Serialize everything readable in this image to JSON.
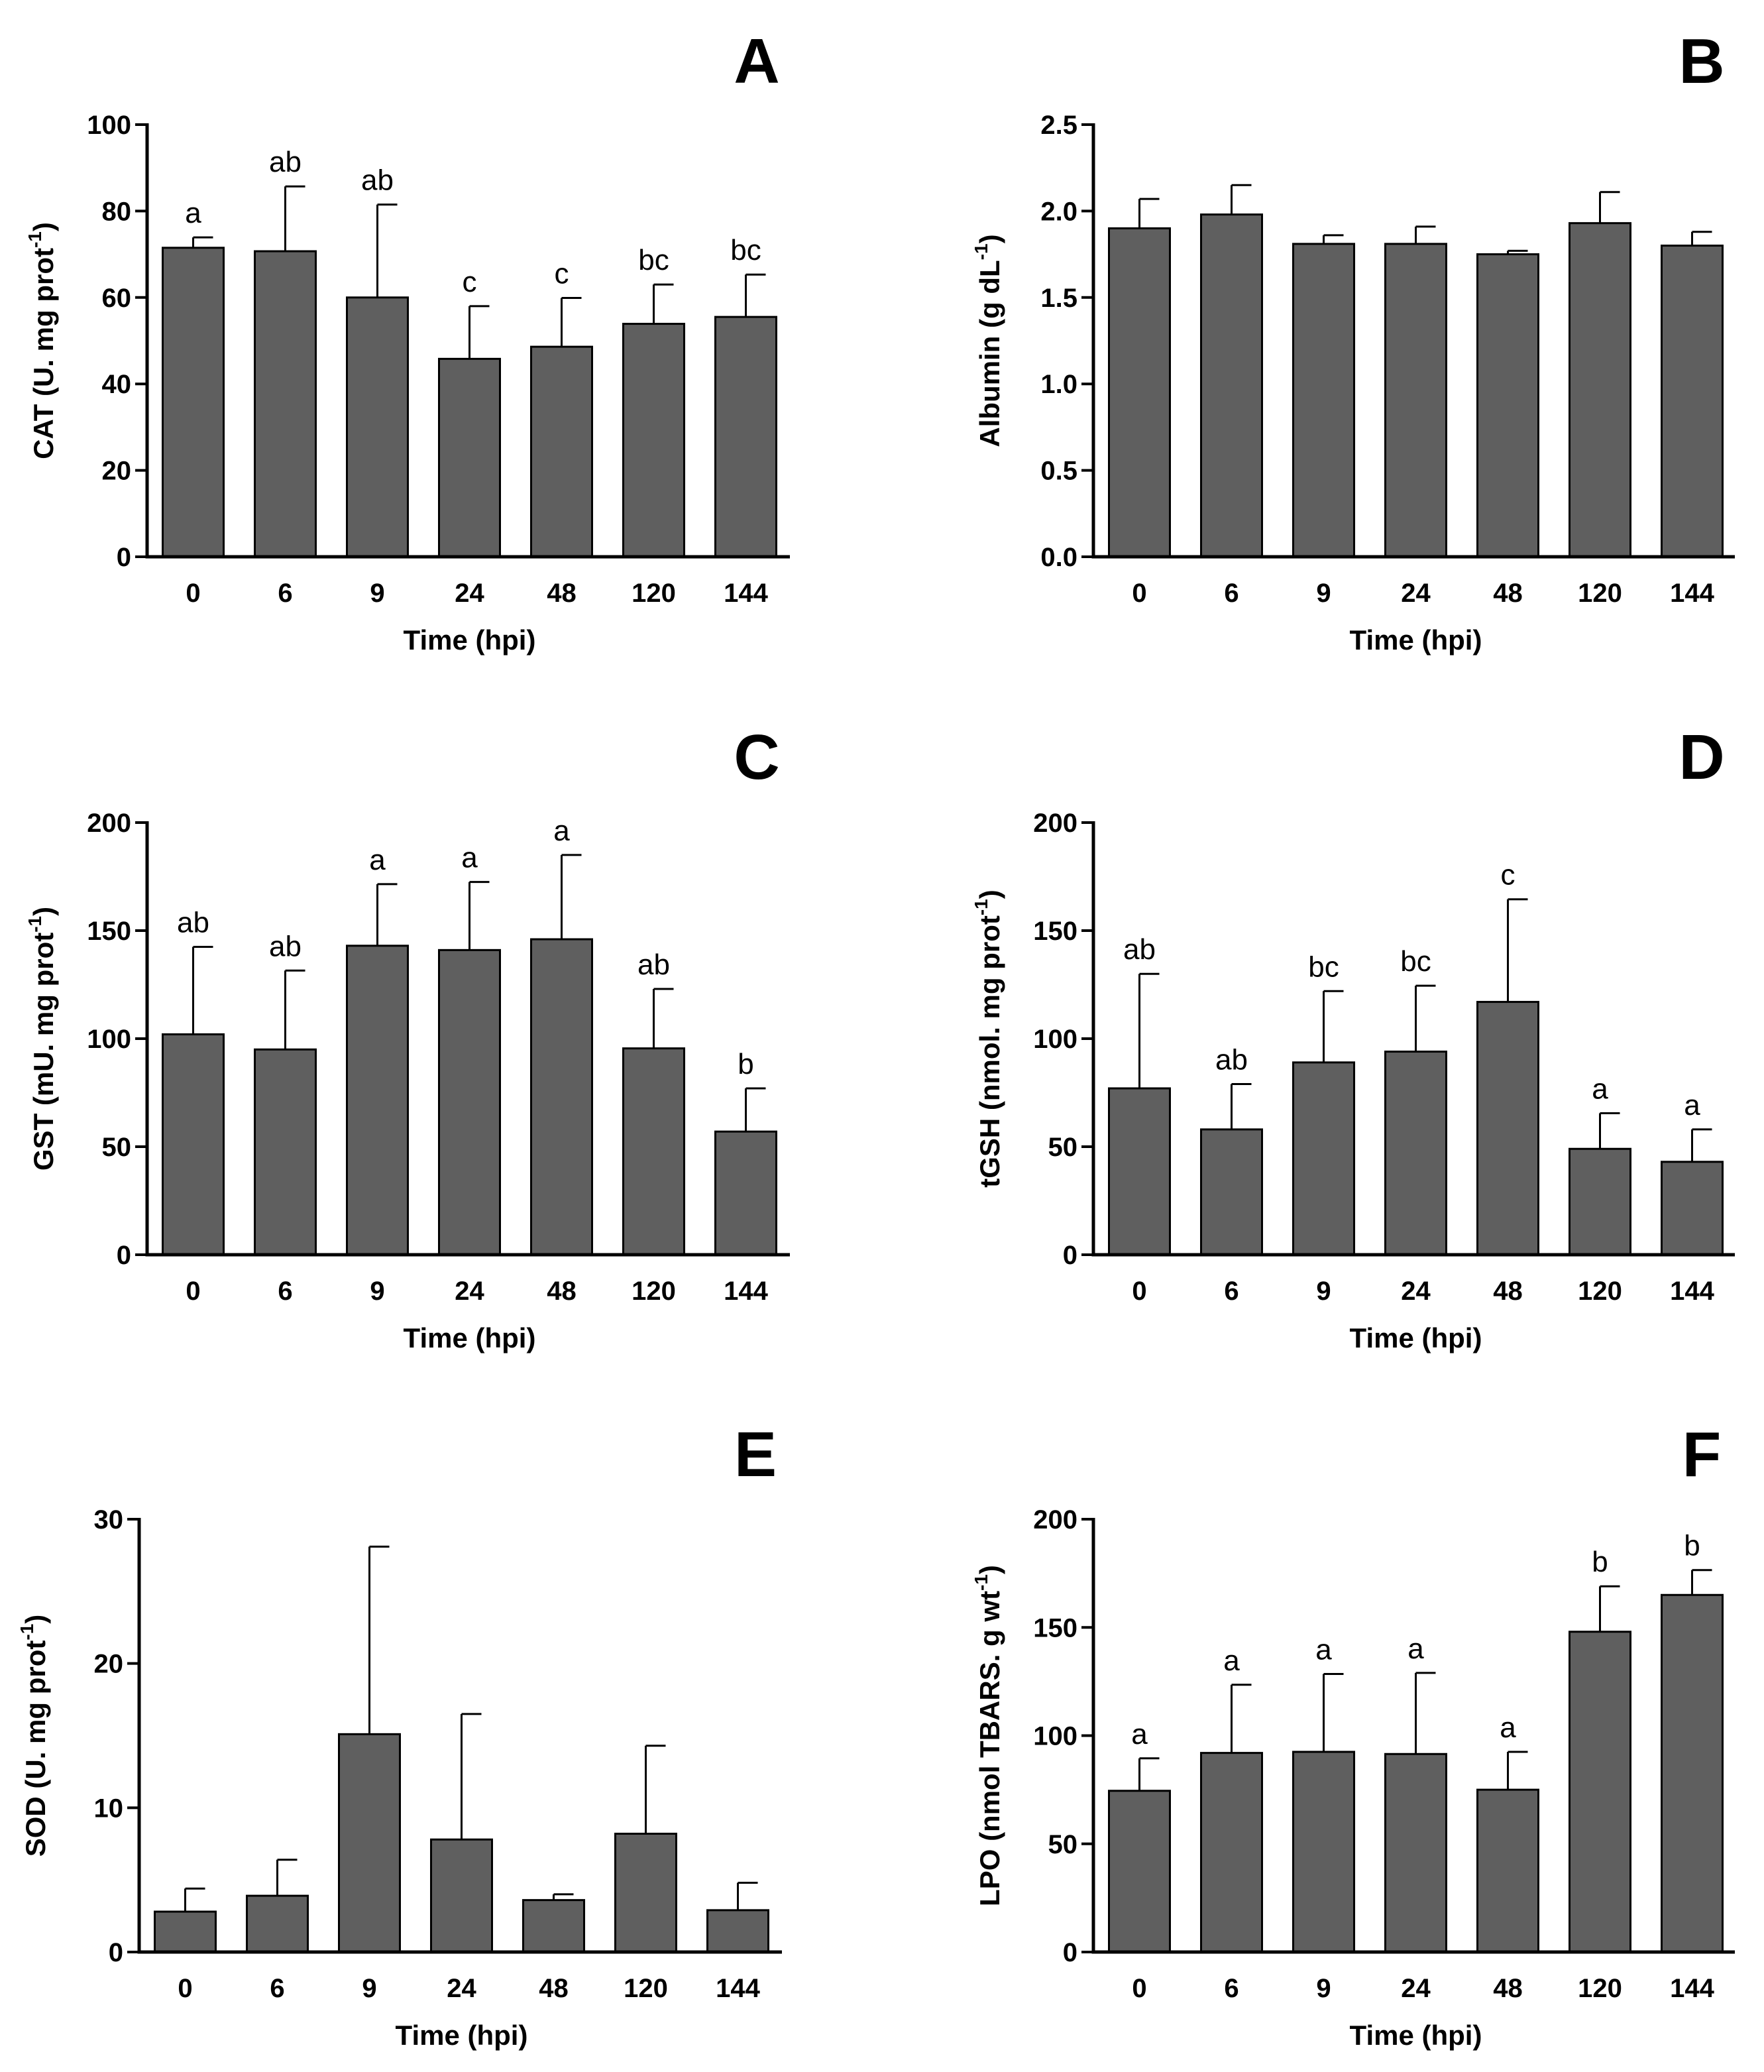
{
  "chart_data": [
    {
      "type": "bar",
      "panel": "A",
      "categories": [
        "0",
        "6",
        "9",
        "24",
        "48",
        "120",
        "144"
      ],
      "values": [
        71.5,
        70.7,
        60,
        45.8,
        48.6,
        53.9,
        55.5
      ],
      "errors": [
        2.4,
        15,
        21.5,
        12.2,
        11.3,
        9.1,
        9.8
      ],
      "labels": [
        "a",
        "ab",
        "ab",
        "c",
        "c",
        "bc",
        "bc"
      ],
      "xlabel": "Time (hpi)",
      "ylabel": "CAT (U. mg prot",
      "ylabel_sup": "-1",
      "ylabel_end": ")",
      "ylim": [
        0,
        100
      ],
      "yticks": [
        "0",
        "20",
        "40",
        "60",
        "80",
        "100"
      ]
    },
    {
      "type": "bar",
      "panel": "B",
      "categories": [
        "0",
        "6",
        "9",
        "24",
        "48",
        "120",
        "144"
      ],
      "values": [
        1.9,
        1.98,
        1.81,
        1.81,
        1.75,
        1.93,
        1.8
      ],
      "errors": [
        0.17,
        0.17,
        0.05,
        0.1,
        0.02,
        0.18,
        0.08
      ],
      "labels": [],
      "xlabel": "Time (hpi)",
      "ylabel": "Albumin (g dL",
      "ylabel_sup": "-1",
      "ylabel_end": ")",
      "ylim": [
        0,
        2.5
      ],
      "yticks": [
        "0.0",
        "0.5",
        "1.0",
        "1.5",
        "2.0",
        "2.5"
      ]
    },
    {
      "type": "bar",
      "panel": "C",
      "categories": [
        "0",
        "6",
        "9",
        "24",
        "48",
        "120",
        "144"
      ],
      "values": [
        102,
        95,
        143,
        141,
        146,
        95.5,
        57
      ],
      "errors": [
        40.5,
        36.5,
        28.5,
        31.5,
        39,
        27.5,
        20
      ],
      "labels": [
        "ab",
        "ab",
        "a",
        "a",
        "a",
        "ab",
        "b"
      ],
      "xlabel": "Time (hpi)",
      "ylabel": "GST (mU. mg prot",
      "ylabel_sup": "-1",
      "ylabel_end": ")",
      "ylim": [
        0,
        200
      ],
      "yticks": [
        "0",
        "50",
        "100",
        "150",
        "200"
      ]
    },
    {
      "type": "bar",
      "panel": "D",
      "categories": [
        "0",
        "6",
        "9",
        "24",
        "48",
        "120",
        "144"
      ],
      "values": [
        77,
        58,
        89,
        94,
        117,
        49,
        43
      ],
      "errors": [
        53,
        21,
        33,
        30.5,
        47.5,
        16.5,
        15
      ],
      "labels": [
        "ab",
        "ab",
        "bc",
        "bc",
        "c",
        "a",
        "a"
      ],
      "xlabel": "Time (hpi)",
      "ylabel": "tGSH (nmol. mg prot",
      "ylabel_sup": "-1",
      "ylabel_end": ")",
      "ylim": [
        0,
        200
      ],
      "yticks": [
        "0",
        "50",
        "100",
        "150",
        "200"
      ]
    },
    {
      "type": "bar",
      "panel": "E",
      "categories": [
        "0",
        "6",
        "9",
        "24",
        "48",
        "120",
        "144"
      ],
      "values": [
        2.8,
        3.9,
        15.1,
        7.8,
        3.6,
        8.2,
        2.9
      ],
      "errors": [
        1.6,
        2.5,
        13,
        8.7,
        0.4,
        6.1,
        1.9
      ],
      "labels": [],
      "xlabel": "Time (hpi)",
      "ylabel": "SOD (U. mg prot",
      "ylabel_sup": "-1",
      "ylabel_end": ")",
      "ylim": [
        0,
        30
      ],
      "yticks": [
        "0",
        "10",
        "20",
        "30"
      ]
    },
    {
      "type": "bar",
      "panel": "F",
      "categories": [
        "0",
        "6",
        "9",
        "24",
        "48",
        "120",
        "144"
      ],
      "values": [
        74.5,
        92,
        92.5,
        91.5,
        75,
        148,
        165
      ],
      "errors": [
        15,
        31.5,
        36,
        37.5,
        17.5,
        21,
        11.5
      ],
      "labels": [
        "a",
        "a",
        "a",
        "a",
        "a",
        "b",
        "b"
      ],
      "xlabel": "Time (hpi)",
      "ylabel": "LPO (nmol TBARS. g wt",
      "ylabel_sup": "-1",
      "ylabel_end": ")",
      "ylim": [
        0,
        200
      ],
      "yticks": [
        "0",
        "50",
        "100",
        "150",
        "200"
      ]
    }
  ]
}
